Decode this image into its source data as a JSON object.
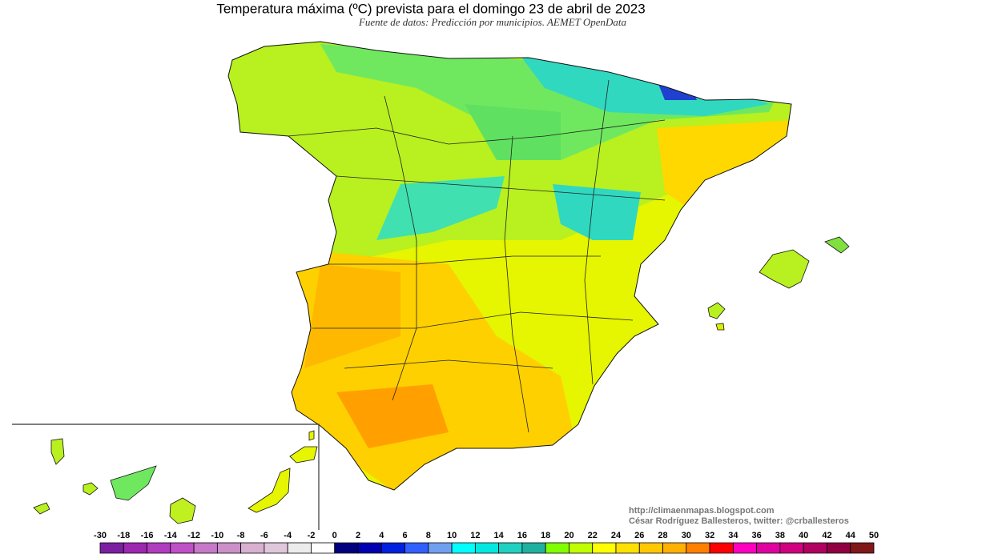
{
  "title": "Temperatura máxima (ºC) prevista para el domingo 23 de abril de 2023",
  "subtitle": "Fuente de datos: Predicción por municipios. AEMET OpenData",
  "credits": [
    "http://climaenmapas.blogspot.com",
    "César Rodríguez Ballesteros, twitter: @crballesteros"
  ],
  "colorbar": {
    "ticks": [
      -30,
      -18,
      -16,
      -14,
      -12,
      -10,
      -8,
      -6,
      -4,
      -2,
      0,
      2,
      4,
      6,
      8,
      10,
      12,
      14,
      16,
      18,
      20,
      22,
      24,
      26,
      28,
      30,
      32,
      34,
      36,
      38,
      40,
      42,
      44,
      50
    ],
    "colors": [
      "#7b1fa2",
      "#9c27b0",
      "#b03cc0",
      "#c050c8",
      "#c878c8",
      "#cc90c8",
      "#d8b0d0",
      "#e0c8dc",
      "#ececec",
      "#ffffff",
      "#000080",
      "#0000b0",
      "#0020e0",
      "#3060ff",
      "#70a0f0",
      "#00ffff",
      "#00e8e0",
      "#20d0c0",
      "#20b0a0",
      "#80ff00",
      "#c0ff00",
      "#ffff00",
      "#ffe000",
      "#ffc800",
      "#ffb000",
      "#ff8000",
      "#ff0000",
      "#ff00c0",
      "#e000a0",
      "#d00080",
      "#b00060",
      "#900040",
      "#801818"
    ]
  }
}
